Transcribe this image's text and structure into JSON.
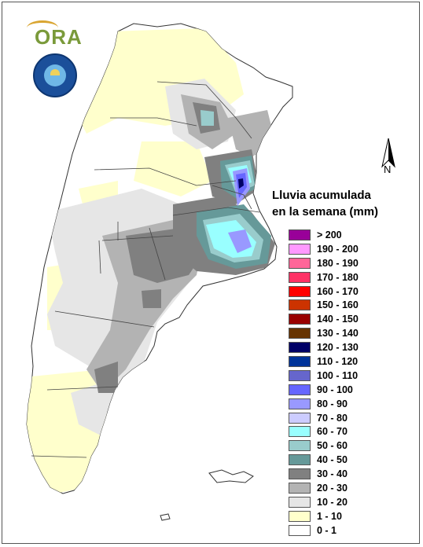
{
  "map": {
    "logo_text": "ORA",
    "north_label": "N",
    "legend_title_line1": "Lluvia acumulada",
    "legend_title_line2": "en la semana (mm)",
    "legend": [
      {
        "label": "> 200",
        "color": "#990099"
      },
      {
        "label": "190 - 200",
        "color": "#ff99ff"
      },
      {
        "label": "180 - 190",
        "color": "#ff6699"
      },
      {
        "label": "170 - 180",
        "color": "#ff3366"
      },
      {
        "label": "160 - 170",
        "color": "#ff0000"
      },
      {
        "label": "150 - 160",
        "color": "#cc3300"
      },
      {
        "label": "140 - 150",
        "color": "#990000"
      },
      {
        "label": "130 - 140",
        "color": "#663300"
      },
      {
        "label": "120 - 130",
        "color": "#000066"
      },
      {
        "label": "110 - 120",
        "color": "#003399"
      },
      {
        "label": "100 - 110",
        "color": "#6666cc"
      },
      {
        "label": "90 - 100",
        "color": "#6666ff"
      },
      {
        "label": "80 - 90",
        "color": "#9999ff"
      },
      {
        "label": "70 - 80",
        "color": "#ccccff"
      },
      {
        "label": "60 - 70",
        "color": "#99ffff"
      },
      {
        "label": "50 - 60",
        "color": "#99cccc"
      },
      {
        "label": "40 - 50",
        "color": "#669999"
      },
      {
        "label": "30 - 40",
        "color": "#808080"
      },
      {
        "label": "20 - 30",
        "color": "#b3b3b3"
      },
      {
        "label": "10 - 20",
        "color": "#e6e6e6"
      },
      {
        "label": "1 - 10",
        "color": "#ffffcc"
      },
      {
        "label": "0 - 1",
        "color": "#ffffff"
      }
    ]
  }
}
